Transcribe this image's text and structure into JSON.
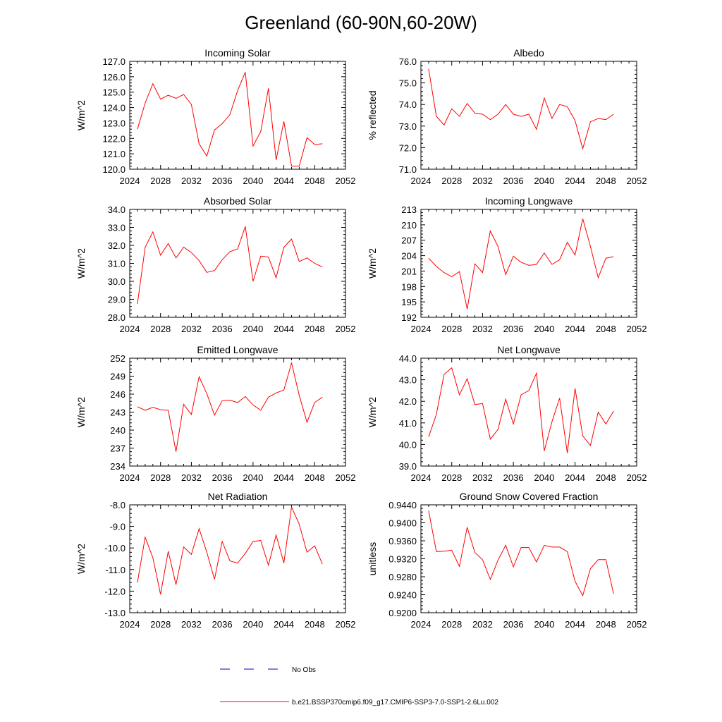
{
  "title": "Greenland (60-90N,60-20W)",
  "colors": {
    "model": "#ff0000",
    "obs": "#0000cc"
  },
  "legend": {
    "obs_label": "No Obs",
    "model_label": "b.e21.BSSP370cmip6.f09_g17.CMIP6-SSP3-7.0-SSP1-2.6Lu.002"
  },
  "chart_data": [
    {
      "type": "line",
      "title": "Incoming Solar",
      "ylabel": "W/m^2",
      "xlim": [
        2024,
        2052
      ],
      "ylim": [
        120.0,
        127.0
      ],
      "grid": false,
      "xticks": [
        2024,
        2028,
        2032,
        2036,
        2040,
        2044,
        2048,
        2052
      ],
      "xticklabels": [
        "2024",
        "2028",
        "2032",
        "2036",
        "2040",
        "2044",
        "2048",
        "2052"
      ],
      "yticks": [
        120.0,
        121.0,
        122.0,
        123.0,
        124.0,
        125.0,
        126.0,
        127.0
      ],
      "yticklabels": [
        "120.0",
        "121.0",
        "122.0",
        "123.0",
        "124.0",
        "125.0",
        "126.0",
        "127.0"
      ],
      "x": [
        2025,
        2026,
        2027,
        2028,
        2029,
        2030,
        2031,
        2032,
        2033,
        2034,
        2035,
        2036,
        2037,
        2038,
        2039,
        2040,
        2041,
        2042,
        2043,
        2044,
        2045,
        2046,
        2047,
        2048,
        2049
      ],
      "series": [
        {
          "values": [
            122.6,
            124.3,
            125.55,
            124.55,
            124.8,
            124.6,
            124.85,
            124.2,
            121.65,
            120.85,
            122.55,
            122.95,
            123.55,
            125.1,
            126.3,
            121.5,
            122.45,
            125.25,
            120.6,
            123.1,
            120.2,
            120.2,
            122.05,
            121.6,
            121.65
          ]
        }
      ]
    },
    {
      "type": "line",
      "title": "Albedo",
      "ylabel": "% reflected",
      "xlim": [
        2024,
        2052
      ],
      "ylim": [
        71.0,
        76.0
      ],
      "grid": false,
      "xticks": [
        2024,
        2028,
        2032,
        2036,
        2040,
        2044,
        2048,
        2052
      ],
      "xticklabels": [
        "2024",
        "2028",
        "2032",
        "2036",
        "2040",
        "2044",
        "2048",
        "2052"
      ],
      "yticks": [
        71.0,
        72.0,
        73.0,
        74.0,
        75.0,
        76.0
      ],
      "yticklabels": [
        "71.0",
        "72.0",
        "73.0",
        "74.0",
        "75.0",
        "76.0"
      ],
      "x": [
        2025,
        2026,
        2027,
        2028,
        2029,
        2030,
        2031,
        2032,
        2033,
        2034,
        2035,
        2036,
        2037,
        2038,
        2039,
        2040,
        2041,
        2042,
        2043,
        2044,
        2045,
        2046,
        2047,
        2048,
        2049
      ],
      "series": [
        {
          "values": [
            75.65,
            73.45,
            73.05,
            73.8,
            73.45,
            74.05,
            73.6,
            73.55,
            73.3,
            73.55,
            74.0,
            73.55,
            73.45,
            73.55,
            72.85,
            74.3,
            73.35,
            74.0,
            73.9,
            73.25,
            71.95,
            73.2,
            73.35,
            73.3,
            73.55
          ]
        }
      ]
    },
    {
      "type": "line",
      "title": "Absorbed Solar",
      "ylabel": "W/m^2",
      "xlim": [
        2024,
        2052
      ],
      "ylim": [
        28.0,
        34.0
      ],
      "grid": false,
      "xticks": [
        2024,
        2028,
        2032,
        2036,
        2040,
        2044,
        2048,
        2052
      ],
      "xticklabels": [
        "2024",
        "2028",
        "2032",
        "2036",
        "2040",
        "2044",
        "2048",
        "2052"
      ],
      "yticks": [
        28.0,
        29.0,
        30.0,
        31.0,
        32.0,
        33.0,
        34.0
      ],
      "yticklabels": [
        "28.0",
        "29.0",
        "30.0",
        "31.0",
        "32.0",
        "33.0",
        "34.0"
      ],
      "x": [
        2025,
        2026,
        2027,
        2028,
        2029,
        2030,
        2031,
        2032,
        2033,
        2034,
        2035,
        2036,
        2037,
        2038,
        2039,
        2040,
        2041,
        2042,
        2043,
        2044,
        2045,
        2046,
        2047,
        2048,
        2049
      ],
      "series": [
        {
          "values": [
            28.75,
            31.9,
            32.75,
            31.45,
            32.1,
            31.3,
            31.9,
            31.6,
            31.15,
            30.5,
            30.6,
            31.2,
            31.65,
            31.8,
            33.05,
            30.0,
            31.4,
            31.35,
            30.2,
            31.9,
            32.35,
            31.1,
            31.3,
            31.0,
            30.8
          ]
        }
      ]
    },
    {
      "type": "line",
      "title": "Incoming Longwave",
      "ylabel": "W/m^2",
      "xlim": [
        2024,
        2052
      ],
      "ylim": [
        192,
        213
      ],
      "grid": false,
      "xticks": [
        2024,
        2028,
        2032,
        2036,
        2040,
        2044,
        2048,
        2052
      ],
      "xticklabels": [
        "2024",
        "2028",
        "2032",
        "2036",
        "2040",
        "2044",
        "2048",
        "2052"
      ],
      "yticks": [
        192,
        195,
        198,
        201,
        204,
        207,
        210,
        213
      ],
      "yticklabels": [
        "192",
        "195",
        "198",
        "201",
        "204",
        "207",
        "210",
        "213"
      ],
      "x": [
        2025,
        2026,
        2027,
        2028,
        2029,
        2030,
        2031,
        2032,
        2033,
        2034,
        2035,
        2036,
        2037,
        2038,
        2039,
        2040,
        2041,
        2042,
        2043,
        2044,
        2045,
        2046,
        2047,
        2048,
        2049
      ],
      "series": [
        {
          "values": [
            203.5,
            201.9,
            200.7,
            199.9,
            200.9,
            193.6,
            202.4,
            200.7,
            208.8,
            205.8,
            200.3,
            203.9,
            202.7,
            202.1,
            202.3,
            204.5,
            202.3,
            203.2,
            206.6,
            204.1,
            211.2,
            205.8,
            199.7,
            203.5,
            203.8
          ]
        }
      ]
    },
    {
      "type": "line",
      "title": "Emitted Longwave",
      "ylabel": "W/m^2",
      "xlim": [
        2024,
        2052
      ],
      "ylim": [
        234,
        252
      ],
      "grid": false,
      "xticks": [
        2024,
        2028,
        2032,
        2036,
        2040,
        2044,
        2048,
        2052
      ],
      "xticklabels": [
        "2024",
        "2028",
        "2032",
        "2036",
        "2040",
        "2044",
        "2048",
        "2052"
      ],
      "yticks": [
        234,
        237,
        240,
        243,
        246,
        249,
        252
      ],
      "yticklabels": [
        "234",
        "237",
        "240",
        "243",
        "246",
        "249",
        "252"
      ],
      "x": [
        2025,
        2026,
        2027,
        2028,
        2029,
        2030,
        2031,
        2032,
        2033,
        2034,
        2035,
        2036,
        2037,
        2038,
        2039,
        2040,
        2041,
        2042,
        2043,
        2044,
        2045,
        2046,
        2047,
        2048,
        2049
      ],
      "series": [
        {
          "values": [
            243.9,
            243.3,
            243.8,
            243.4,
            243.3,
            236.4,
            244.3,
            242.6,
            248.9,
            246.1,
            242.5,
            244.9,
            245.0,
            244.6,
            245.6,
            244.2,
            243.3,
            245.5,
            246.2,
            246.7,
            251.2,
            245.8,
            241.3,
            244.6,
            245.5
          ]
        }
      ]
    },
    {
      "type": "line",
      "title": "Net Longwave",
      "ylabel": "W/m^2",
      "xlim": [
        2024,
        2052
      ],
      "ylim": [
        39.0,
        44.0
      ],
      "grid": false,
      "xticks": [
        2024,
        2028,
        2032,
        2036,
        2040,
        2044,
        2048,
        2052
      ],
      "xticklabels": [
        "2024",
        "2028",
        "2032",
        "2036",
        "2040",
        "2044",
        "2048",
        "2052"
      ],
      "yticks": [
        39.0,
        40.0,
        41.0,
        42.0,
        43.0,
        44.0
      ],
      "yticklabels": [
        "39.0",
        "40.0",
        "41.0",
        "42.0",
        "43.0",
        "44.0"
      ],
      "x": [
        2025,
        2026,
        2027,
        2028,
        2029,
        2030,
        2031,
        2032,
        2033,
        2034,
        2035,
        2036,
        2037,
        2038,
        2039,
        2040,
        2041,
        2042,
        2043,
        2044,
        2045,
        2046,
        2047,
        2048,
        2049
      ],
      "series": [
        {
          "values": [
            40.35,
            41.4,
            43.25,
            43.55,
            42.3,
            43.05,
            41.85,
            41.9,
            40.25,
            40.7,
            42.1,
            40.95,
            42.3,
            42.5,
            43.3,
            39.7,
            41.05,
            42.15,
            39.6,
            42.6,
            40.4,
            39.95,
            41.5,
            40.95,
            41.55
          ]
        }
      ]
    },
    {
      "type": "line",
      "title": "Net Radiation",
      "ylabel": "W/m^2",
      "xlim": [
        2024,
        2052
      ],
      "ylim": [
        -13.0,
        -8.0
      ],
      "grid": false,
      "xticks": [
        2024,
        2028,
        2032,
        2036,
        2040,
        2044,
        2048,
        2052
      ],
      "xticklabels": [
        "2024",
        "2028",
        "2032",
        "2036",
        "2040",
        "2044",
        "2048",
        "2052"
      ],
      "yticks": [
        -13.0,
        -12.0,
        -11.0,
        -10.0,
        -9.0,
        -8.0
      ],
      "yticklabels": [
        "-13.0",
        "-12.0",
        "-11.0",
        "-10.0",
        "-9.0",
        "-8.0"
      ],
      "x": [
        2025,
        2026,
        2027,
        2028,
        2029,
        2030,
        2031,
        2032,
        2033,
        2034,
        2035,
        2036,
        2037,
        2038,
        2039,
        2040,
        2041,
        2042,
        2043,
        2044,
        2045,
        2046,
        2047,
        2048,
        2049
      ],
      "series": [
        {
          "values": [
            -11.6,
            -9.5,
            -10.45,
            -12.15,
            -10.15,
            -11.7,
            -9.95,
            -10.3,
            -9.1,
            -10.2,
            -11.45,
            -9.7,
            -10.6,
            -10.7,
            -10.25,
            -9.7,
            -9.65,
            -10.8,
            -9.4,
            -10.7,
            -8.1,
            -8.9,
            -10.2,
            -9.9,
            -10.75
          ]
        }
      ]
    },
    {
      "type": "line",
      "title": "Ground Snow Covered Fraction",
      "ylabel": "unitless",
      "xlim": [
        2024,
        2052
      ],
      "ylim": [
        0.92,
        0.944
      ],
      "grid": false,
      "xticks": [
        2024,
        2028,
        2032,
        2036,
        2040,
        2044,
        2048,
        2052
      ],
      "xticklabels": [
        "2024",
        "2028",
        "2032",
        "2036",
        "2040",
        "2044",
        "2048",
        "2052"
      ],
      "yticks": [
        0.92,
        0.924,
        0.928,
        0.932,
        0.936,
        0.94,
        0.944
      ],
      "yticklabels": [
        "0.9200",
        "0.9240",
        "0.9280",
        "0.9320",
        "0.9360",
        "0.9400",
        "0.9440"
      ],
      "x": [
        2025,
        2026,
        2027,
        2028,
        2029,
        2030,
        2031,
        2032,
        2033,
        2034,
        2035,
        2036,
        2037,
        2038,
        2039,
        2040,
        2041,
        2042,
        2043,
        2044,
        2045,
        2046,
        2047,
        2048,
        2049
      ],
      "series": [
        {
          "values": [
            0.9427,
            0.9336,
            0.9337,
            0.9339,
            0.9303,
            0.939,
            0.9334,
            0.9318,
            0.9274,
            0.9317,
            0.935,
            0.9302,
            0.9345,
            0.9345,
            0.9313,
            0.935,
            0.9346,
            0.9346,
            0.9336,
            0.927,
            0.9238,
            0.9298,
            0.9318,
            0.9318,
            0.9242
          ]
        }
      ]
    }
  ]
}
